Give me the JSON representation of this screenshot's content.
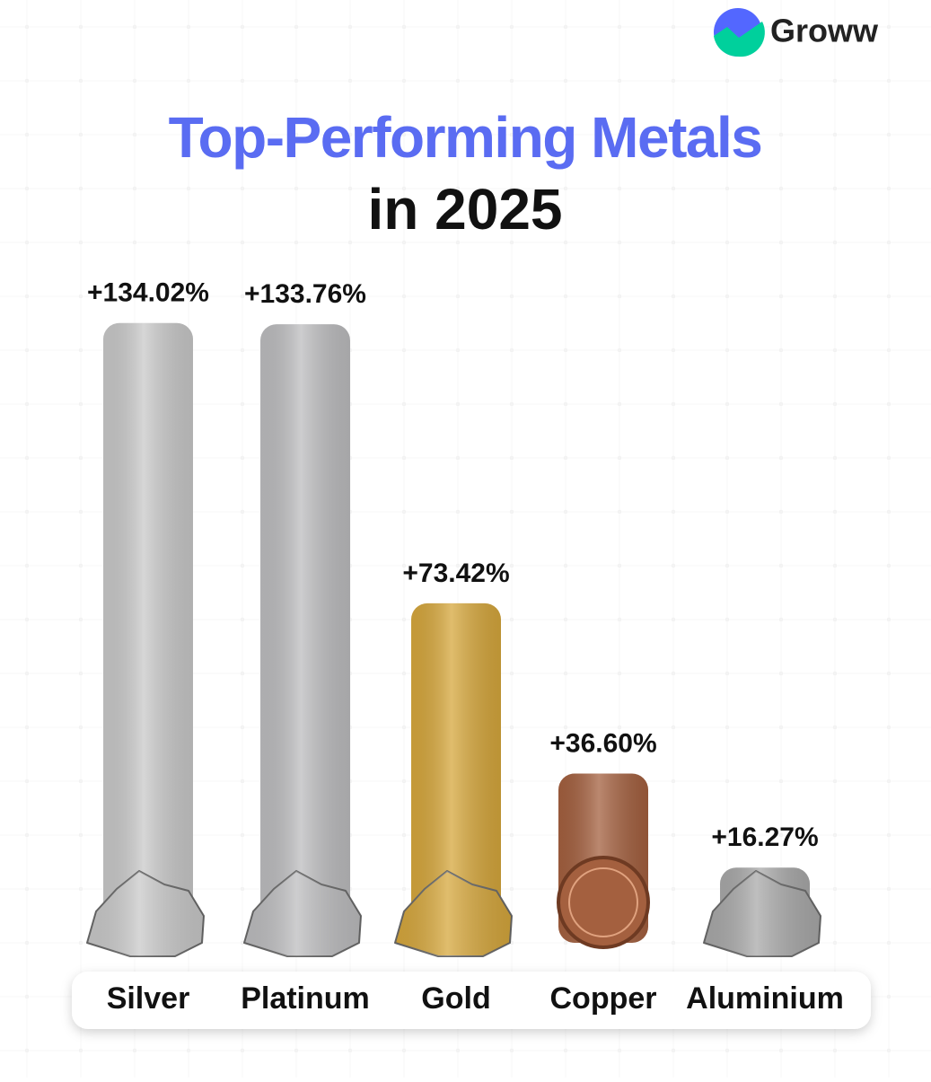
{
  "brand": "Groww",
  "chart_data": {
    "type": "bar",
    "title": "Top-Performing Metals",
    "subtitle": "in 2025",
    "categories": [
      "Silver",
      "Platinum",
      "Gold",
      "Copper",
      "Aluminium"
    ],
    "values": [
      134.02,
      133.76,
      73.42,
      36.6,
      16.27
    ],
    "value_labels": [
      "+134.02%",
      "+133.76%",
      "+73.42%",
      "+36.60%",
      "+16.27%"
    ],
    "colors": [
      "#c9c9c9",
      "#bdbdbf",
      "#d6a73c",
      "#a4603f",
      "#a9a9a9"
    ]
  }
}
